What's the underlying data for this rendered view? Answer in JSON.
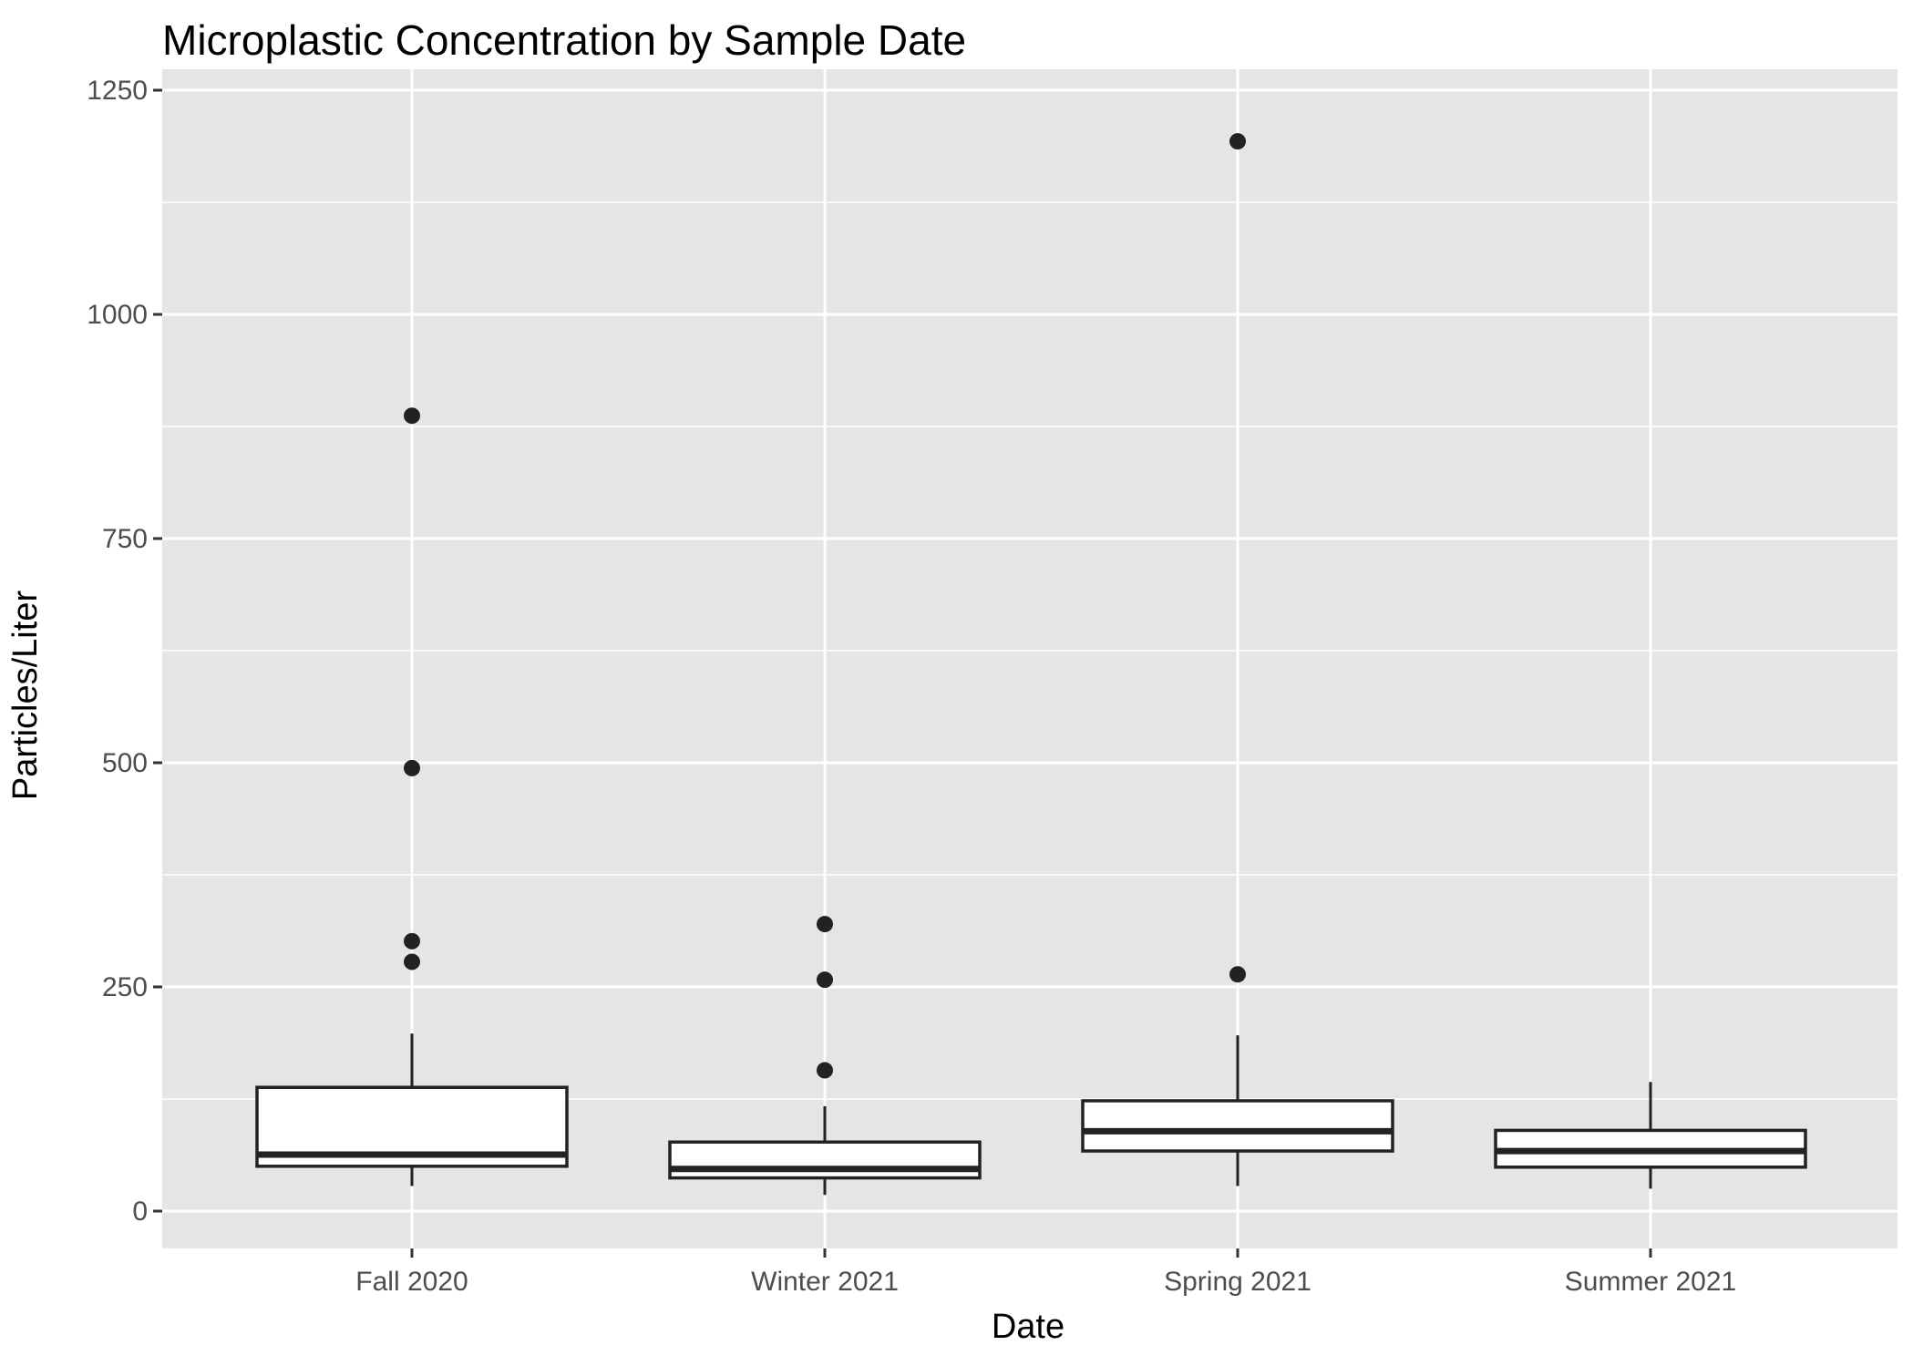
{
  "chart_data": {
    "type": "boxplot",
    "title": "Microplastic Concentration by Sample Date",
    "xlabel": "Date",
    "ylabel": "Particles/Liter",
    "ylim": [
      -85,
      1250
    ],
    "yticks": [
      0,
      250,
      500,
      750,
      1000,
      1250
    ],
    "categories": [
      "Fall 2020",
      "Winter 2021",
      "Spring 2021",
      "Summer 2021"
    ],
    "boxes": [
      {
        "category": "Fall 2020",
        "whisker_low": 28,
        "q1": 50,
        "median": 63,
        "q3": 138,
        "whisker_high": 198,
        "outliers": [
          278,
          301,
          494,
          887
        ]
      },
      {
        "category": "Winter 2021",
        "whisker_low": 18,
        "q1": 37,
        "median": 47,
        "q3": 77,
        "whisker_high": 117,
        "outliers": [
          157,
          258,
          320
        ]
      },
      {
        "category": "Spring 2021",
        "whisker_low": 28,
        "q1": 67,
        "median": 89,
        "q3": 123,
        "whisker_high": 196,
        "outliers": [
          264,
          1193
        ]
      },
      {
        "category": "Summer 2021",
        "whisker_low": 25,
        "q1": 49,
        "median": 67,
        "q3": 90,
        "whisker_high": 144,
        "outliers": []
      }
    ],
    "grid": true,
    "colors": {
      "panel": "#e5e5e5",
      "grid": "#ffffff",
      "box_fill": "#ffffff",
      "box_line": "#222222",
      "outlier": "#222222",
      "tick_label": "#4d4d4d"
    }
  }
}
